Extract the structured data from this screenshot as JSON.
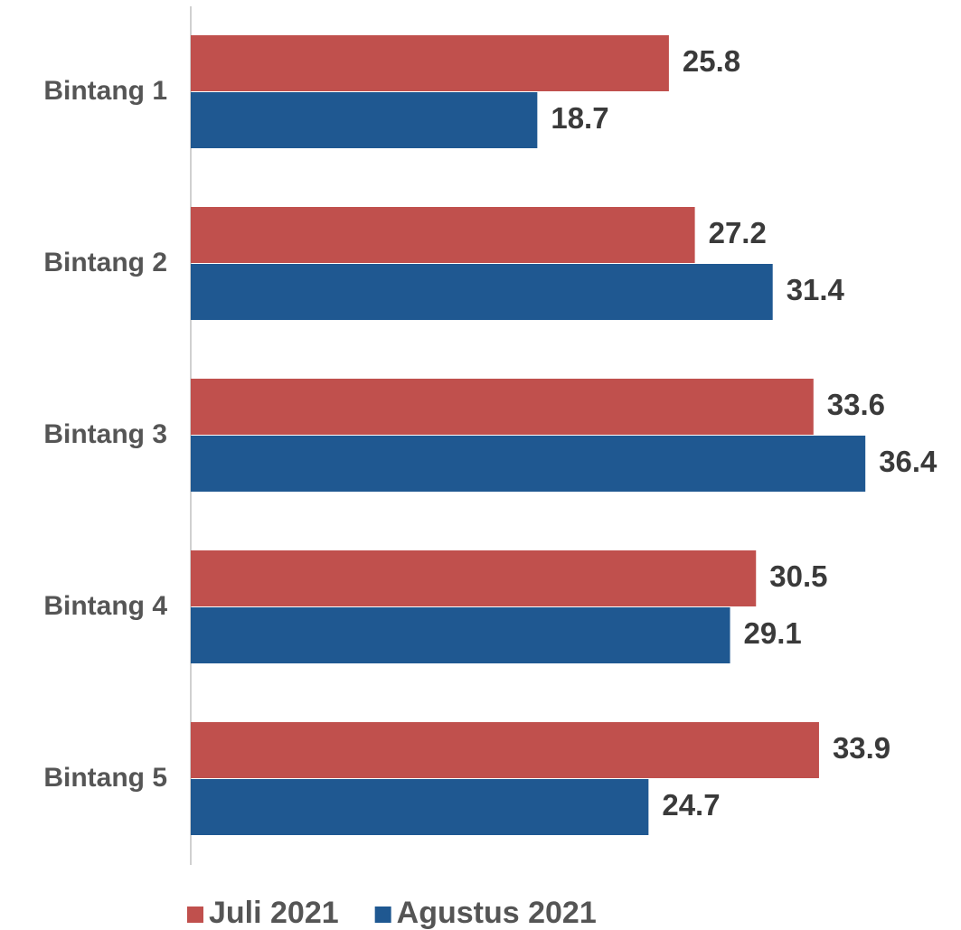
{
  "chart_data": {
    "type": "hbar",
    "categories": [
      "Bintang 1",
      "Bintang 2",
      "Bintang 3",
      "Bintang 4",
      "Bintang 5"
    ],
    "series": [
      {
        "name": "Juli 2021",
        "color": "#c0504d",
        "values": [
          25.8,
          27.2,
          33.6,
          30.5,
          33.9
        ]
      },
      {
        "name": "Agustus 2021",
        "color": "#1f5891",
        "values": [
          18.7,
          31.4,
          36.4,
          29.1,
          24.7
        ]
      }
    ],
    "xlim": [
      0,
      40
    ],
    "legend": "bottom"
  }
}
